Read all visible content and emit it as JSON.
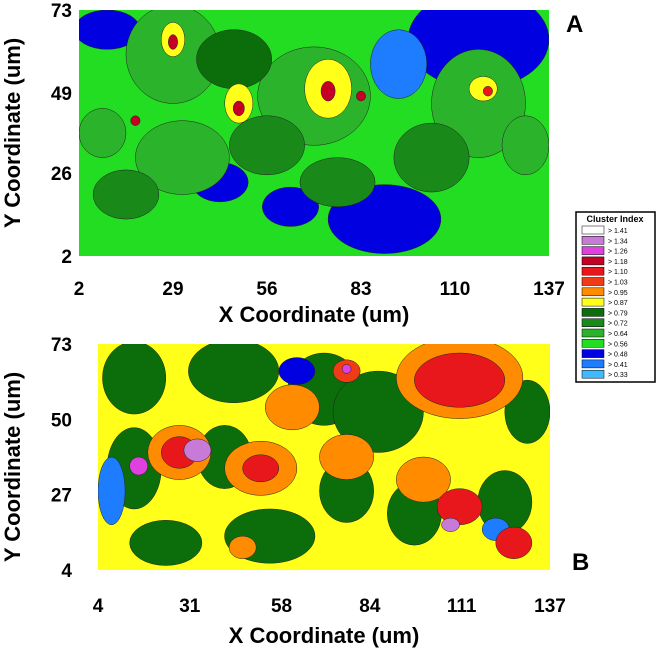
{
  "chart_data": [
    {
      "type": "heatmap",
      "panel_label": "A",
      "xlabel": "X Coordinate (um)",
      "ylabel": "Y Coordinate (um)",
      "xticks": [
        "2",
        "29",
        "56",
        "83",
        "110",
        "137"
      ],
      "yticks": [
        "2",
        "26",
        "49",
        "73"
      ],
      "xlim": [
        2,
        137
      ],
      "ylim": [
        2,
        73
      ],
      "grid": false
    },
    {
      "type": "heatmap",
      "panel_label": "B",
      "xlabel": "X Coordinate (um)",
      "ylabel": "Y Coordinate (um)",
      "xticks": [
        "4",
        "31",
        "58",
        "84",
        "111",
        "137"
      ],
      "yticks": [
        "4",
        "27",
        "50",
        "73"
      ],
      "xlim": [
        4,
        137
      ],
      "ylim": [
        4,
        73
      ],
      "grid": false
    }
  ],
  "legend": {
    "title": "Cluster Index",
    "placement": "right",
    "entries": [
      {
        "label": "> 1.41",
        "color": "#ffffff"
      },
      {
        "label": "> 1.34",
        "color": "#c77bd6"
      },
      {
        "label": "> 1.26",
        "color": "#e040e0"
      },
      {
        "label": "> 1.18",
        "color": "#c40025"
      },
      {
        "label": "> 1.10",
        "color": "#e8171c"
      },
      {
        "label": "> 1.03",
        "color": "#f03c14"
      },
      {
        "label": "> 0.95",
        "color": "#ff8c00"
      },
      {
        "label": "> 0.87",
        "color": "#ffff1a"
      },
      {
        "label": "> 0.79",
        "color": "#0b6e0b"
      },
      {
        "label": "> 0.72",
        "color": "#198a19"
      },
      {
        "label": "> 0.64",
        "color": "#2cb32c"
      },
      {
        "label": "> 0.56",
        "color": "#22dd22"
      },
      {
        "label": "> 0.48",
        "color": "#0000e0"
      },
      {
        "label": "> 0.41",
        "color": "#1e7cff"
      },
      {
        "label": "> 0.33",
        "color": "#3fb9ff"
      }
    ]
  }
}
